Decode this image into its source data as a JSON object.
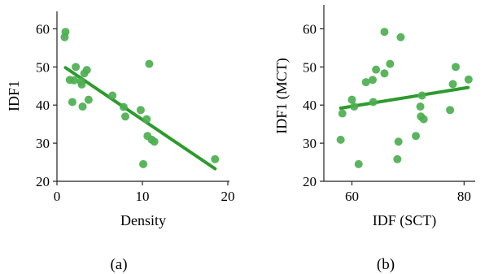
{
  "colors": {
    "point": "#4caf50",
    "fit_line": "#2e9a2e",
    "axis": "#222222"
  },
  "chart_data": [
    {
      "type": "scatter",
      "caption": "(a)",
      "xlabel": "Density",
      "ylabel": "IDF1",
      "xlim": [
        0,
        20
      ],
      "ylim": [
        20,
        65
      ],
      "xticks": [
        0,
        10,
        20
      ],
      "yticks": [
        20,
        30,
        40,
        50,
        60
      ],
      "grid": false,
      "points": [
        {
          "x": 1.0,
          "y": 59.2
        },
        {
          "x": 0.9,
          "y": 57.8
        },
        {
          "x": 1.5,
          "y": 46.6
        },
        {
          "x": 2.2,
          "y": 50.0
        },
        {
          "x": 2.0,
          "y": 46.5
        },
        {
          "x": 1.8,
          "y": 40.8
        },
        {
          "x": 2.8,
          "y": 46.2
        },
        {
          "x": 2.9,
          "y": 45.4
        },
        {
          "x": 3.2,
          "y": 48.3
        },
        {
          "x": 3.5,
          "y": 49.2
        },
        {
          "x": 3.0,
          "y": 39.6
        },
        {
          "x": 3.7,
          "y": 41.4
        },
        {
          "x": 6.5,
          "y": 42.5
        },
        {
          "x": 7.8,
          "y": 39.5
        },
        {
          "x": 8.0,
          "y": 37.0
        },
        {
          "x": 9.8,
          "y": 38.7
        },
        {
          "x": 10.5,
          "y": 36.3
        },
        {
          "x": 10.8,
          "y": 50.8
        },
        {
          "x": 10.6,
          "y": 31.9
        },
        {
          "x": 11.1,
          "y": 30.9
        },
        {
          "x": 11.4,
          "y": 30.4
        },
        {
          "x": 10.1,
          "y": 24.5
        },
        {
          "x": 18.5,
          "y": 25.8
        }
      ],
      "fit_line": [
        {
          "x": 1.0,
          "y": 49.8
        },
        {
          "x": 18.5,
          "y": 23.3
        }
      ]
    },
    {
      "type": "scatter",
      "caption": "(b)",
      "xlabel": "IDF (SCT)",
      "ylabel": "IDF1 (MCT)",
      "xlim": [
        55,
        83
      ],
      "ylim": [
        20,
        65
      ],
      "xticks": [
        60,
        80
      ],
      "yticks": [
        20,
        30,
        40,
        50,
        60
      ],
      "grid": false,
      "points": [
        {
          "x": 58.0,
          "y": 30.9
        },
        {
          "x": 58.3,
          "y": 37.8
        },
        {
          "x": 60.0,
          "y": 41.4
        },
        {
          "x": 60.4,
          "y": 39.6
        },
        {
          "x": 61.2,
          "y": 24.5
        },
        {
          "x": 62.5,
          "y": 46.0
        },
        {
          "x": 63.7,
          "y": 46.6
        },
        {
          "x": 63.8,
          "y": 40.8
        },
        {
          "x": 64.3,
          "y": 49.3
        },
        {
          "x": 65.8,
          "y": 59.2
        },
        {
          "x": 65.8,
          "y": 48.3
        },
        {
          "x": 66.8,
          "y": 50.8
        },
        {
          "x": 68.1,
          "y": 25.8
        },
        {
          "x": 68.3,
          "y": 30.4
        },
        {
          "x": 68.7,
          "y": 57.8
        },
        {
          "x": 71.4,
          "y": 31.9
        },
        {
          "x": 72.2,
          "y": 39.6
        },
        {
          "x": 72.3,
          "y": 37.0
        },
        {
          "x": 72.5,
          "y": 42.5
        },
        {
          "x": 72.8,
          "y": 36.3
        },
        {
          "x": 77.5,
          "y": 38.7
        },
        {
          "x": 78.0,
          "y": 45.5
        },
        {
          "x": 78.5,
          "y": 50.0
        },
        {
          "x": 80.8,
          "y": 46.7
        }
      ],
      "fit_line": [
        {
          "x": 58.0,
          "y": 39.2
        },
        {
          "x": 80.7,
          "y": 44.6
        }
      ]
    }
  ]
}
